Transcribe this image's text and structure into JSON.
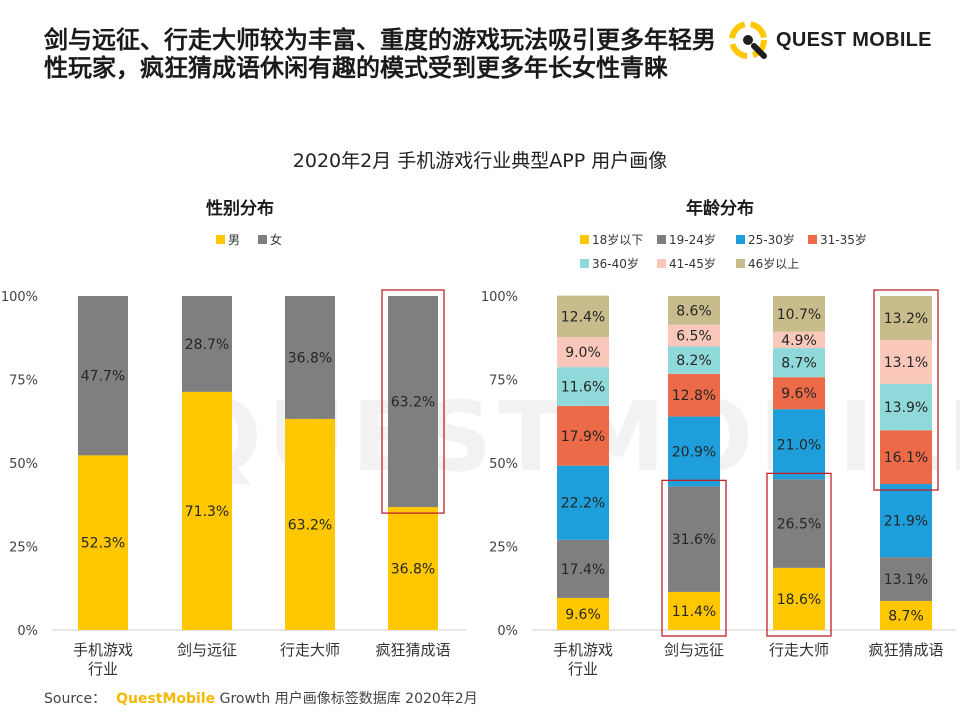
{
  "headline": {
    "line1": "剑与远征、行走大师较为丰富、重度的游戏玩法吸引更多年轻男",
    "line2": "性玩家，疯狂猜成语休闲有趣的模式受到更多年长女性青睐"
  },
  "logo": {
    "text": "QUEST MOBILE",
    "watermark": "QUESTMOBILE"
  },
  "main_title": "2020年2月 手机游戏行业典型APP 用户画像",
  "footer": {
    "source_label": "Source：",
    "brand": "QuestMobile",
    "rest": " Growth 用户画像标签数据库 2020年2月"
  },
  "colors": {
    "male": "#FFC700",
    "female": "#7F7F7F",
    "age": [
      "#FFC700",
      "#7F7F7F",
      "#1E9FDB",
      "#EC6A47",
      "#8FD9DA",
      "#F9C8BA",
      "#C8BC8D"
    ],
    "highlight": "#C0202A"
  },
  "chart_data": [
    {
      "type": "bar",
      "stacked": true,
      "title": "性别分布",
      "categories": [
        "手机游戏\n行业",
        "剑与远征",
        "行走大师",
        "疯狂猜成语"
      ],
      "ylim": [
        0,
        100
      ],
      "yticks": [
        "0%",
        "25%",
        "50%",
        "75%",
        "100%"
      ],
      "series": [
        {
          "name": "男",
          "values": [
            52.3,
            71.3,
            63.2,
            36.8
          ],
          "labels": [
            "52.3%",
            "71.3%",
            "63.2%",
            "36.8%"
          ]
        },
        {
          "name": "女",
          "values": [
            47.7,
            28.7,
            36.8,
            63.2
          ],
          "labels": [
            "47.7%",
            "28.7%",
            "36.8%",
            "63.2%"
          ]
        }
      ],
      "highlights": [
        {
          "category": 3,
          "series": [
            1
          ]
        }
      ]
    },
    {
      "type": "bar",
      "stacked": true,
      "title": "年龄分布",
      "categories": [
        "手机游戏\n行业",
        "剑与远征",
        "行走大师",
        "疯狂猜成语"
      ],
      "ylim": [
        0,
        100
      ],
      "yticks": [
        "0%",
        "25%",
        "50%",
        "75%",
        "100%"
      ],
      "series": [
        {
          "name": "18岁以下",
          "values": [
            9.6,
            11.4,
            18.6,
            8.7
          ],
          "labels": [
            "9.6%",
            "11.4%",
            "18.6%",
            "8.7%"
          ]
        },
        {
          "name": "19-24岁",
          "values": [
            17.4,
            31.6,
            26.5,
            13.1
          ],
          "labels": [
            "17.4%",
            "31.6%",
            "26.5%",
            "13.1%"
          ]
        },
        {
          "name": "25-30岁",
          "values": [
            22.2,
            20.9,
            21.0,
            21.9
          ],
          "labels": [
            "22.2%",
            "20.9%",
            "21.0%",
            "21.9%"
          ]
        },
        {
          "name": "31-35岁",
          "values": [
            17.9,
            12.8,
            9.6,
            16.1
          ],
          "labels": [
            "17.9%",
            "12.8%",
            "9.6%",
            "16.1%"
          ]
        },
        {
          "name": "36-40岁",
          "values": [
            11.6,
            8.2,
            8.7,
            13.9
          ],
          "labels": [
            "11.6%",
            "8.2%",
            "8.7%",
            "13.9%"
          ]
        },
        {
          "name": "41-45岁",
          "values": [
            9.0,
            6.5,
            4.9,
            13.1
          ],
          "labels": [
            "9.0%",
            "6.5%",
            "4.9%",
            "13.1%"
          ]
        },
        {
          "name": "46岁以上",
          "values": [
            12.4,
            8.6,
            10.7,
            13.2
          ],
          "labels": [
            "12.4%",
            "8.6%",
            "10.7%",
            "13.2%"
          ]
        }
      ],
      "highlights": [
        {
          "category": 1,
          "series": [
            0,
            1
          ]
        },
        {
          "category": 2,
          "series": [
            0,
            1
          ]
        },
        {
          "category": 3,
          "series": [
            3,
            4,
            5,
            6
          ]
        }
      ]
    }
  ]
}
